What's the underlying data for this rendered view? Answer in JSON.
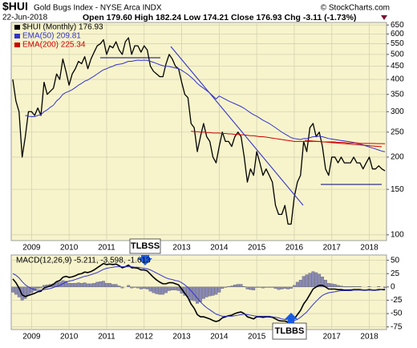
{
  "chart_data": [
    {
      "type": "line",
      "symbol": "$HUI",
      "title": "Gold Bugs Index - NYSE Arca INDX",
      "source": "© StockCharts.com",
      "date": "22-Jun-2018",
      "quote": "Open 179.60 High 182.24 Low 174.21 Close 176.93 Chg -3.11 (-1.73%)",
      "annotations": [
        "TLBSS"
      ],
      "categories": [
        null,
        null,
        null,
        null,
        null,
        null,
        "2009",
        null,
        null,
        null,
        null,
        null,
        null,
        null,
        null,
        null,
        null,
        null,
        "2010",
        null,
        null,
        null,
        null,
        null,
        null,
        null,
        null,
        null,
        null,
        null,
        "2011",
        null,
        null,
        null,
        null,
        null,
        null,
        null,
        null,
        null,
        null,
        null,
        "2012",
        null,
        null,
        null,
        null,
        null,
        null,
        null,
        null,
        null,
        null,
        null,
        "2013",
        null,
        null,
        null,
        null,
        null,
        null,
        null,
        null,
        null,
        null,
        null,
        "2014",
        null,
        null,
        null,
        null,
        null,
        null,
        null,
        null,
        null,
        null,
        null,
        "2015",
        null,
        null,
        null,
        null,
        null,
        null,
        null,
        null,
        null,
        null,
        null,
        "2016",
        null,
        null,
        null,
        null,
        null,
        null,
        null,
        null,
        null,
        null,
        null,
        "2017",
        null,
        null,
        null,
        null,
        null,
        null,
        null,
        null,
        null,
        null,
        null,
        "2018",
        null,
        null,
        null,
        null,
        null
      ],
      "series": [
        {
          "name": "$HUI (Monthly) 176.93",
          "color": "#000000",
          "values": [
            400,
            330,
            300,
            200,
            240,
            300,
            300,
            290,
            310,
            290,
            390,
            350,
            360,
            370,
            420,
            400,
            480,
            430,
            380,
            420,
            440,
            470,
            460,
            490,
            440,
            480,
            510,
            540,
            550,
            570,
            500,
            540,
            530,
            560,
            520,
            500,
            560,
            580,
            500,
            540,
            540,
            510,
            540,
            520,
            450,
            430,
            420,
            410,
            410,
            460,
            500,
            480,
            450,
            440,
            390,
            350,
            340,
            270,
            260,
            210,
            240,
            270,
            240,
            230,
            200,
            190,
            220,
            250,
            230,
            230,
            220,
            240,
            250,
            240,
            200,
            160,
            180,
            170,
            210,
            190,
            170,
            180,
            170,
            160,
            130,
            120,
            120,
            130,
            110,
            110,
            140,
            160,
            170,
            230,
            210,
            260,
            270,
            240,
            250,
            220,
            180,
            170,
            200,
            200,
            190,
            200,
            190,
            190,
            190,
            200,
            190,
            190,
            180,
            190,
            200,
            180,
            180,
            185,
            180,
            176.93
          ]
        },
        {
          "name": "EMA(50) 209.81",
          "color": "#3333cc",
          "values": [
            null,
            null,
            null,
            null,
            290,
            288,
            287,
            287,
            290,
            292,
            300,
            305,
            312,
            318,
            330,
            338,
            350,
            356,
            360,
            365,
            372,
            380,
            386,
            394,
            398,
            405,
            412,
            420,
            428,
            436,
            440,
            446,
            450,
            456,
            458,
            460,
            465,
            470,
            470,
            473,
            475,
            474,
            475,
            474,
            470,
            466,
            461,
            456,
            452,
            450,
            449,
            446,
            443,
            440,
            434,
            426,
            418,
            408,
            398,
            386,
            377,
            370,
            362,
            354,
            345,
            336,
            345,
            340,
            335,
            330,
            326,
            322,
            318,
            314,
            309,
            303,
            297,
            292,
            288,
            283,
            278,
            274,
            270,
            265,
            260,
            255,
            250,
            246,
            242,
            238,
            236,
            235,
            234,
            236,
            236,
            238,
            240,
            240,
            241,
            240,
            238,
            236,
            235,
            234,
            233,
            232,
            231,
            230,
            229,
            228,
            226,
            225,
            223,
            221,
            219,
            217,
            215,
            213,
            211,
            209.81
          ]
        },
        {
          "name": "EMA(200) 225.34",
          "color": "#cc0000",
          "values": [
            null,
            null,
            null,
            null,
            null,
            null,
            null,
            null,
            null,
            null,
            null,
            null,
            null,
            null,
            null,
            null,
            null,
            null,
            null,
            null,
            null,
            null,
            null,
            null,
            null,
            null,
            null,
            null,
            null,
            null,
            null,
            null,
            null,
            null,
            null,
            null,
            null,
            null,
            null,
            null,
            null,
            null,
            null,
            null,
            null,
            null,
            null,
            null,
            null,
            null,
            null,
            null,
            null,
            null,
            null,
            null,
            null,
            252,
            251,
            251,
            250,
            250,
            249,
            249,
            248,
            248,
            248,
            247,
            247,
            246,
            246,
            245,
            245,
            244,
            244,
            243,
            242,
            242,
            241,
            240,
            240,
            239,
            238,
            237,
            236,
            235,
            234,
            233,
            232,
            231,
            230,
            230,
            230,
            230,
            230,
            230,
            230,
            230,
            230,
            229,
            229,
            229,
            229,
            229,
            228,
            228,
            228,
            227,
            227,
            227,
            227,
            226,
            226,
            226,
            226,
            226,
            225.8,
            225.6,
            225.5,
            225.34
          ]
        }
      ],
      "log_scale": true,
      "grid": true,
      "ylim": [
        95,
        665
      ],
      "yticks": [
        650,
        600,
        550,
        500,
        450,
        400,
        350,
        300,
        250,
        200,
        150,
        100
      ]
    },
    {
      "type": "macd",
      "title": "MACD(12,26,9) -5.211, -3.598, -1.613",
      "annotations": [
        "TLBBS"
      ],
      "categories": [
        null,
        null,
        null,
        null,
        null,
        null,
        "2009",
        null,
        null,
        null,
        null,
        null,
        null,
        null,
        null,
        null,
        null,
        null,
        "2010",
        null,
        null,
        null,
        null,
        null,
        null,
        null,
        null,
        null,
        null,
        null,
        "2011",
        null,
        null,
        null,
        null,
        null,
        null,
        null,
        null,
        null,
        null,
        null,
        "2012",
        null,
        null,
        null,
        null,
        null,
        null,
        null,
        null,
        null,
        null,
        null,
        "2013",
        null,
        null,
        null,
        null,
        null,
        null,
        null,
        null,
        null,
        null,
        null,
        "2014",
        null,
        null,
        null,
        null,
        null,
        null,
        null,
        null,
        null,
        null,
        null,
        "2015",
        null,
        null,
        null,
        null,
        null,
        null,
        null,
        null,
        null,
        null,
        null,
        "2016",
        null,
        null,
        null,
        null,
        null,
        null,
        null,
        null,
        null,
        null,
        null,
        "2017",
        null,
        null,
        null,
        null,
        null,
        null,
        null,
        null,
        null,
        null,
        null,
        "2018",
        null,
        null,
        null,
        null,
        null
      ],
      "series": [
        {
          "style": "bar",
          "color": "#8a8ab8",
          "values": [
            -10,
            -14,
            -19,
            -25,
            -22,
            -16,
            -11,
            -7,
            -3,
            -2,
            3,
            4,
            5,
            6,
            9,
            9,
            12,
            11,
            7,
            7,
            7,
            8,
            7,
            8,
            6,
            6,
            7,
            9,
            10,
            11,
            7,
            7,
            5,
            5,
            2,
            -2,
            0,
            3,
            -2,
            -1,
            -2,
            -4,
            -3,
            -4,
            -8,
            -11,
            -13,
            -14,
            -14,
            -11,
            -7,
            -6,
            -6,
            -7,
            -12,
            -16,
            -19,
            -25,
            -26,
            -31,
            -28,
            -22,
            -19,
            -17,
            -16,
            -14,
            -10,
            -3,
            -1,
            1,
            2,
            4,
            5,
            5,
            1,
            -4,
            -5,
            -6,
            -1,
            -1,
            -2,
            -1,
            -1,
            -1,
            -3,
            -5,
            -4,
            -3,
            -4,
            -3,
            3,
            9,
            13,
            20,
            23,
            26,
            29,
            27,
            24,
            19,
            13,
            7,
            6,
            5,
            3,
            2,
            1,
            1,
            1,
            1,
            1,
            1,
            0,
            0,
            1,
            0,
            0,
            1,
            0,
            -1.613
          ]
        },
        {
          "style": "line",
          "color": "#000000",
          "values": [
            15,
            8,
            -2,
            -15,
            -18,
            -16,
            -14,
            -12,
            -9,
            -8,
            -2,
            0,
            2,
            5,
            10,
            12,
            18,
            20,
            18,
            19,
            21,
            24,
            25,
            28,
            27,
            29,
            32,
            36,
            40,
            44,
            42,
            43,
            42,
            43,
            40,
            36,
            38,
            41,
            36,
            36,
            35,
            32,
            32,
            30,
            24,
            18,
            13,
            9,
            6,
            6,
            8,
            8,
            6,
            4,
            -4,
            -12,
            -20,
            -32,
            -40,
            -52,
            -56,
            -56,
            -58,
            -60,
            -63,
            -65,
            -63,
            -58,
            -56,
            -54,
            -53,
            -50,
            -48,
            -47,
            -50,
            -56,
            -58,
            -60,
            -56,
            -56,
            -57,
            -56,
            -56,
            -57,
            -60,
            -63,
            -64,
            -64,
            -66,
            -66,
            -60,
            -52,
            -44,
            -32,
            -24,
            -14,
            -4,
            0,
            3,
            3,
            0,
            -4,
            -4,
            -4,
            -5,
            -5,
            -6,
            -6,
            -6,
            -5,
            -5,
            -5,
            -6,
            -6,
            -5,
            -6,
            -6,
            -5,
            -5,
            -5.211
          ]
        },
        {
          "style": "line",
          "color": "#3333cc",
          "values": [
            25,
            22,
            17,
            10,
            4,
            0,
            -3,
            -5,
            -6,
            -6,
            -5,
            -4,
            -3,
            -1,
            1,
            3,
            6,
            9,
            11,
            12,
            14,
            16,
            18,
            20,
            21,
            23,
            25,
            27,
            30,
            33,
            35,
            36,
            37,
            38,
            38,
            38,
            38,
            38,
            38,
            37,
            37,
            36,
            35,
            34,
            32,
            29,
            26,
            23,
            20,
            17,
            15,
            14,
            12,
            11,
            8,
            4,
            -1,
            -7,
            -14,
            -21,
            -28,
            -34,
            -39,
            -43,
            -47,
            -51,
            -53,
            -55,
            -55,
            -55,
            -55,
            -54,
            -53,
            -52,
            -51,
            -52,
            -53,
            -54,
            -55,
            -55,
            -55,
            -55,
            -55,
            -56,
            -57,
            -58,
            -60,
            -61,
            -62,
            -63,
            -63,
            -61,
            -57,
            -52,
            -47,
            -40,
            -33,
            -27,
            -21,
            -16,
            -13,
            -11,
            -10,
            -9,
            -8,
            -7,
            -7,
            -7,
            -7,
            -6,
            -6,
            -6,
            -6,
            -6,
            -6,
            -6,
            -6,
            -6,
            -5,
            -3.598
          ]
        }
      ],
      "grid": true,
      "ylim": [
        -80,
        60
      ],
      "yticks": [
        50,
        25,
        0,
        -25,
        -50,
        -75
      ]
    }
  ]
}
